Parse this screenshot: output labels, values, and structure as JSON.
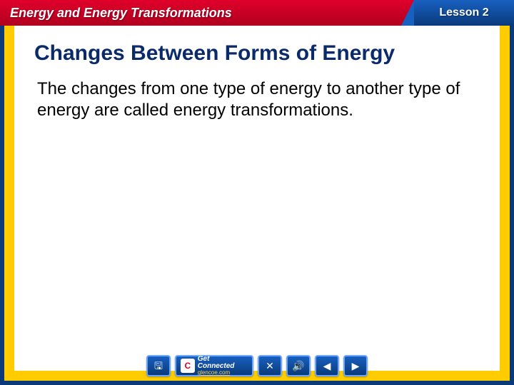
{
  "colors": {
    "outer_border": "#0a3a7a",
    "mid_border": "#ffcc00",
    "header_left_bg_from": "#b00020",
    "header_left_bg_to": "#e0002a",
    "header_right_bg_from": "#0a3a7a",
    "header_right_bg_to": "#1860c0",
    "heading_text": "#0a2a6a",
    "body_text": "#000000",
    "nav_btn_bg_from": "#1860c0",
    "nav_btn_bg_to": "#0a3a7a",
    "nav_btn_border": "#6aa6ff",
    "connect_icon_color": "#e0002a",
    "connect_link": "#ffd24a"
  },
  "header": {
    "title": "Energy and Energy Transformations",
    "lesson": "Lesson 2"
  },
  "content": {
    "heading": "Changes Between Forms of Energy",
    "body": "The changes from one type of energy to another type of energy are called energy transformations."
  },
  "nav": {
    "save_icon": "🖫",
    "connect_title": "Get Connected",
    "connect_link": "glencoe.com",
    "connect_badge": "C",
    "close_icon": "✕",
    "sound_icon": "🔊",
    "prev_icon": "◀",
    "next_icon": "▶"
  },
  "typography": {
    "heading_fontsize": 30,
    "body_fontsize": 24,
    "header_title_fontsize": 18,
    "lesson_fontsize": 16
  }
}
